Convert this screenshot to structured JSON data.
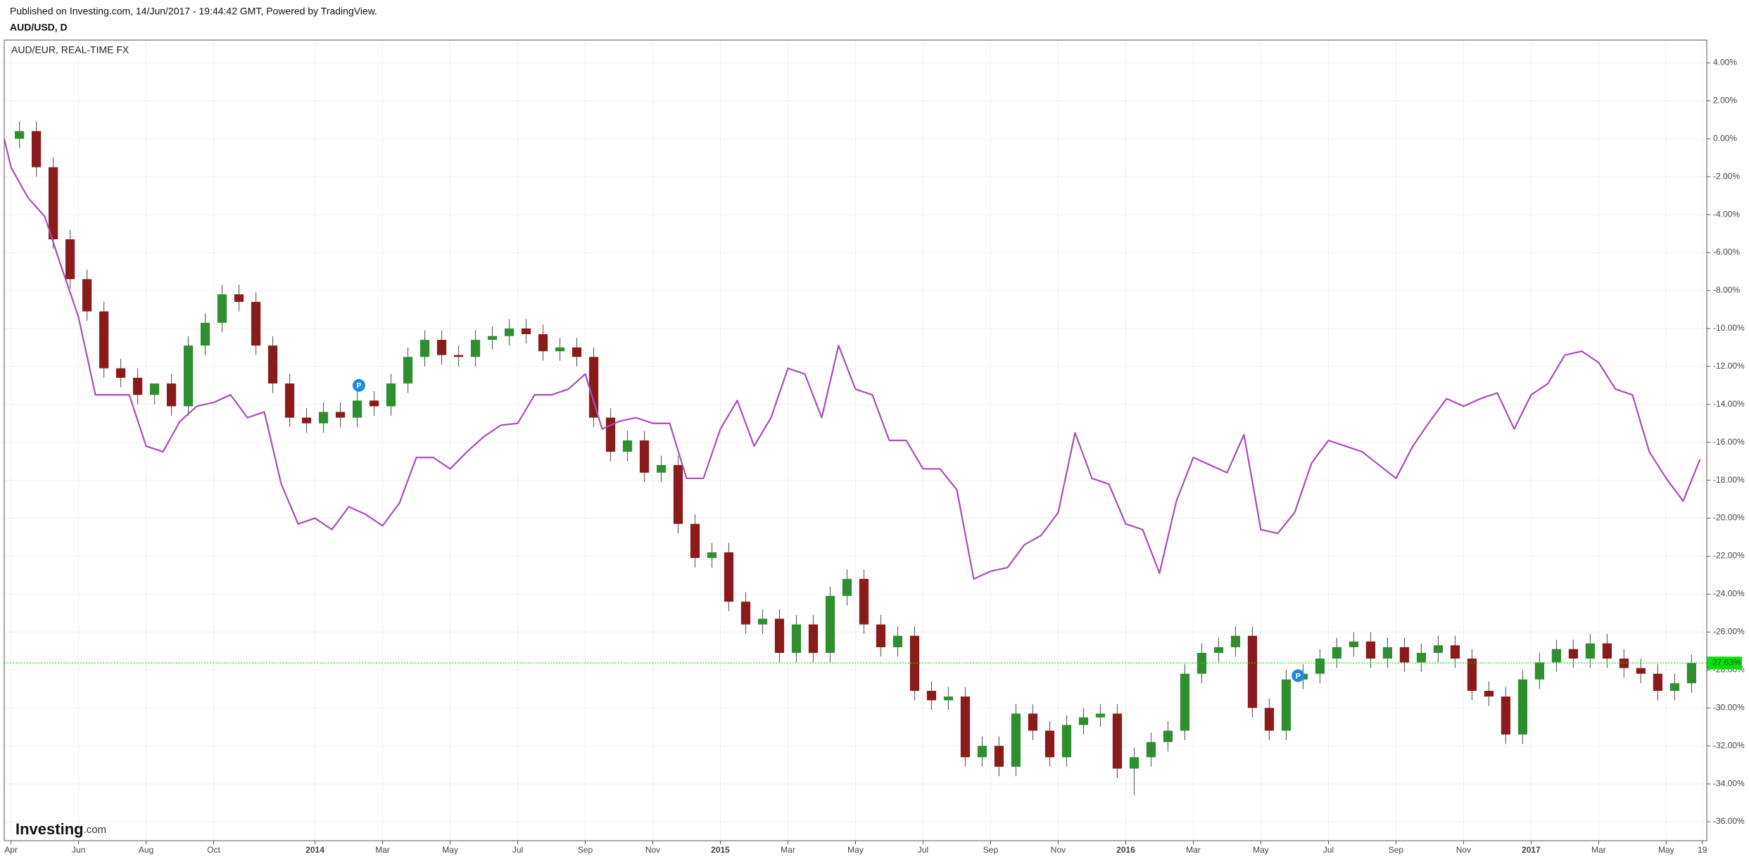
{
  "header": {
    "published": "Published on Investing.com, 14/Jun/2017 - 19:44:42 GMT, Powered by TradingView."
  },
  "watermark": {
    "brand": "Investing",
    "suffix": ".com"
  },
  "chart_data": {
    "type": "candlestick",
    "series": [
      {
        "name": "AUD/USD, D",
        "type": "candlestick",
        "up_color": "#2f8f2f",
        "down_color": "#8b1a1a",
        "wick_color": "#666666",
        "x": [
          0.25,
          0.75,
          1.25,
          1.75,
          2.25,
          2.75,
          3.25,
          3.75,
          4.25,
          4.75,
          5.25,
          5.75,
          6.25,
          6.75,
          7.25,
          7.75,
          8.25,
          8.75,
          9.25,
          9.75,
          10.25,
          10.75,
          11.25,
          11.75,
          12.25,
          12.75,
          13.25,
          13.75,
          14.25,
          14.75,
          15.25,
          15.75,
          16.25,
          16.75,
          17.25,
          17.75,
          18.25,
          18.75,
          19.25,
          19.75,
          20.25,
          20.75,
          21.25,
          21.75,
          22.25,
          22.75,
          23.25,
          23.75,
          24.25,
          24.75,
          25.25,
          25.75,
          26.25,
          26.75,
          27.25,
          27.75,
          28.25,
          28.75,
          29.25,
          29.75,
          30.25,
          30.75,
          31.25,
          31.75,
          32.25,
          32.75,
          33.25,
          33.75,
          34.25,
          34.75,
          35.25,
          35.75,
          36.25,
          36.75,
          37.25,
          37.75,
          38.25,
          38.75,
          39.25,
          39.75,
          40.25,
          40.75,
          41.25,
          41.75,
          42.25,
          42.75,
          43.25,
          43.75,
          44.25,
          44.75,
          45.25,
          45.75,
          46.25,
          46.75,
          47.25,
          47.75,
          48.25,
          48.75,
          49.25,
          49.75
        ],
        "open": [
          0,
          0.4,
          -1.5,
          -5.3,
          -7.4,
          -9.1,
          -12.1,
          -12.6,
          -13.5,
          -12.9,
          -14.1,
          -10.9,
          -9.7,
          -8.2,
          -8.6,
          -10.9,
          -12.9,
          -14.7,
          -15,
          -14.4,
          -14.7,
          -13.8,
          -14.1,
          -12.9,
          -11.5,
          -10.6,
          -11.4,
          -11.5,
          -10.6,
          -10.4,
          -10,
          -10.3,
          -11.2,
          -11.0,
          -11.5,
          -14.7,
          -16.5,
          -15.9,
          -17.6,
          -17.2,
          -20.3,
          -22.1,
          -21.8,
          -24.4,
          -25.6,
          -25.3,
          -27.1,
          -25.6,
          -27.1,
          -24.1,
          -23.2,
          -25.6,
          -26.8,
          -26.2,
          -29.1,
          -29.6,
          -29.4,
          -32.6,
          -32,
          -33.1,
          -30.3,
          -31.2,
          -32.6,
          -30.9,
          -30.5,
          -30.3,
          -33.2,
          -32.6,
          -31.8,
          -31.2,
          -28.2,
          -27.1,
          -26.8,
          -26.2,
          -30,
          -31.2,
          -28.5,
          -28.2,
          -27.4,
          -26.8,
          -26.5,
          -27.4,
          -26.8,
          -27.6,
          -27.1,
          -26.7,
          -27.4,
          -29.1,
          -29.4,
          -31.4,
          -28.5,
          -27.6,
          -26.9,
          -27.4,
          -26.6,
          -27.4,
          -27.9,
          -28.2,
          -29.1,
          -28.7
        ],
        "high": [
          0.9,
          0.9,
          -1.0,
          -4.8,
          -6.9,
          -8.6,
          -11.6,
          -12.1,
          -13.0,
          -12.4,
          -10.4,
          -9.2,
          -7.7,
          -7.7,
          -8.1,
          -10.4,
          -12.4,
          -14.2,
          -13.9,
          -13.9,
          -13.3,
          -13.3,
          -12.4,
          -11.0,
          -10.1,
          -10.1,
          -10.9,
          -10.1,
          -9.9,
          -9.5,
          -9.5,
          -9.8,
          -10.5,
          -10.5,
          -11.0,
          -14.2,
          -15.4,
          -15.4,
          -16.7,
          -16.7,
          -19.8,
          -21.3,
          -21.3,
          -23.9,
          -24.8,
          -24.8,
          -25.1,
          -25.1,
          -23.6,
          -22.7,
          -22.7,
          -25.1,
          -25.7,
          -25.7,
          -28.6,
          -28.9,
          -28.9,
          -31.5,
          -31.5,
          -29.8,
          -29.8,
          -30.7,
          -30.4,
          -30.0,
          -29.8,
          -29.8,
          -32.1,
          -31.3,
          -30.7,
          -27.7,
          -26.6,
          -26.3,
          -25.7,
          -25.7,
          -29.5,
          -28.0,
          -27.7,
          -26.9,
          -26.3,
          -26.0,
          -26.0,
          -26.3,
          -26.3,
          -26.6,
          -26.2,
          -26.2,
          -26.9,
          -28.6,
          -28.9,
          -28.0,
          -27.1,
          -26.4,
          -26.4,
          -26.1,
          -26.1,
          -26.9,
          -27.4,
          -27.7,
          -28.2,
          -27.2
        ],
        "low": [
          -0.5,
          -2.0,
          -5.8,
          -7.9,
          -9.6,
          -12.6,
          -13.1,
          -14.0,
          -14.0,
          -14.6,
          -14.6,
          -11.4,
          -10.2,
          -9.1,
          -11.4,
          -13.4,
          -15.2,
          -15.5,
          -15.5,
          -15.2,
          -15.2,
          -14.6,
          -14.6,
          -13.4,
          -12.0,
          -11.9,
          -12.0,
          -12.0,
          -11.1,
          -10.9,
          -10.8,
          -11.7,
          -11.7,
          -12.0,
          -15.2,
          -17.0,
          -17.0,
          -18.1,
          -18.1,
          -20.8,
          -22.6,
          -22.6,
          -24.9,
          -26.1,
          -26.1,
          -27.6,
          -27.6,
          -27.6,
          -27.6,
          -24.6,
          -26.1,
          -27.3,
          -27.3,
          -29.6,
          -30.1,
          -30.1,
          -33.1,
          -33.1,
          -33.6,
          -33.6,
          -31.7,
          -33.1,
          -33.1,
          -31.4,
          -31.0,
          -33.7,
          -34.6,
          -33.1,
          -32.3,
          -31.7,
          -28.7,
          -27.6,
          -27.3,
          -30.5,
          -31.7,
          -31.7,
          -29.0,
          -28.7,
          -27.9,
          -27.3,
          -27.9,
          -27.9,
          -28.1,
          -28.1,
          -27.6,
          -27.9,
          -29.6,
          -29.9,
          -31.9,
          -31.9,
          -29.0,
          -28.1,
          -27.9,
          -27.9,
          -27.9,
          -28.4,
          -28.7,
          -29.6,
          -29.6,
          -29.2
        ],
        "close": [
          0.4,
          -1.5,
          -5.3,
          -7.4,
          -9.1,
          -12.1,
          -12.6,
          -13.5,
          -12.9,
          -14.1,
          -10.9,
          -9.7,
          -8.2,
          -8.6,
          -10.9,
          -12.9,
          -14.7,
          -15,
          -14.4,
          -14.7,
          -13.8,
          -14.1,
          -12.9,
          -11.5,
          -10.6,
          -11.4,
          -11.5,
          -10.6,
          -10.4,
          -10,
          -10.3,
          -11.2,
          -11.0,
          -11.5,
          -14.7,
          -16.5,
          -15.9,
          -17.6,
          -17.2,
          -20.3,
          -22.1,
          -21.8,
          -24.4,
          -25.6,
          -25.3,
          -27.1,
          -25.6,
          -27.1,
          -24.1,
          -23.2,
          -25.6,
          -26.8,
          -26.2,
          -29.1,
          -29.6,
          -29.4,
          -32.6,
          -32,
          -33.1,
          -30.3,
          -31.2,
          -32.6,
          -30.9,
          -30.5,
          -30.3,
          -33.2,
          -32.6,
          -31.8,
          -31.2,
          -28.2,
          -27.1,
          -26.8,
          -26.2,
          -30,
          -31.2,
          -28.5,
          -28.2,
          -27.4,
          -26.8,
          -26.5,
          -27.4,
          -26.8,
          -27.6,
          -27.1,
          -26.7,
          -27.4,
          -29.1,
          -29.4,
          -31.4,
          -28.5,
          -27.6,
          -26.9,
          -27.4,
          -26.6,
          -27.4,
          -27.9,
          -28.2,
          -29.1,
          -28.7,
          -27.63
        ]
      },
      {
        "name": "AUD/EUR, REAL-TIME FX",
        "type": "line",
        "color": "#a64fb5",
        "x": [
          -0.2,
          0,
          0.5,
          1,
          1.5,
          2,
          2.5,
          3,
          3.5,
          4,
          4.5,
          5,
          5.5,
          6,
          6.5,
          7,
          7.5,
          8,
          8.5,
          9,
          9.5,
          10,
          10.5,
          11,
          11.5,
          12,
          12.5,
          13,
          13.5,
          14,
          14.5,
          15,
          15.5,
          16,
          16.5,
          17,
          17.5,
          18,
          18.5,
          19,
          19.5,
          20,
          20.5,
          21,
          21.5,
          22,
          22.5,
          23,
          23.5,
          24,
          24.5,
          25,
          25.5,
          26,
          26.5,
          27,
          27.5,
          28,
          28.5,
          29,
          29.5,
          30,
          30.5,
          31,
          31.5,
          32,
          32.5,
          33,
          33.5,
          34,
          34.5,
          35,
          35.5,
          36,
          36.5,
          37,
          37.5,
          38,
          38.5,
          39,
          39.5,
          40,
          40.5,
          41,
          41.5,
          42,
          42.5,
          43,
          43.5,
          44,
          44.5,
          45,
          45.5,
          46,
          46.5,
          47,
          47.5,
          48,
          48.5,
          49,
          49.5,
          50
        ],
        "values": [
          0,
          -1.5,
          -3.1,
          -4.1,
          -6.8,
          -9.4,
          -13.5,
          -13.5,
          -13.5,
          -16.2,
          -16.5,
          -14.9,
          -14.1,
          -13.9,
          -13.5,
          -14.7,
          -14.4,
          -18.2,
          -20.3,
          -20,
          -20.6,
          -19.4,
          -19.8,
          -20.4,
          -19.2,
          -16.8,
          -16.8,
          -17.4,
          -16.5,
          -15.7,
          -15.1,
          -15,
          -13.5,
          -13.5,
          -13.2,
          -12.4,
          -15.3,
          -14.9,
          -14.7,
          -15,
          -15,
          -17.9,
          -17.9,
          -15.3,
          -13.8,
          -16.2,
          -14.7,
          -12.1,
          -12.4,
          -14.7,
          -10.9,
          -13.2,
          -13.5,
          -15.9,
          -15.9,
          -17.4,
          -17.4,
          -18.5,
          -23.2,
          -22.8,
          -22.6,
          -21.4,
          -20.9,
          -19.7,
          -15.5,
          -17.9,
          -18.2,
          -20.3,
          -20.6,
          -22.9,
          -19.1,
          -16.8,
          -17.2,
          -17.6,
          -15.6,
          -20.6,
          -20.8,
          -19.7,
          -17.1,
          -15.9,
          -16.2,
          -16.5,
          -17.2,
          -17.9,
          -16.2,
          -14.9,
          -13.7,
          -14.1,
          -13.7,
          -13.4,
          -15.3,
          -13.5,
          -12.9,
          -11.4,
          -11.2,
          -11.8,
          -13.2,
          -13.5,
          -16.5,
          -17.9,
          -19.1,
          -16.9
        ]
      }
    ],
    "xlim": [
      -0.2,
      50.2
    ],
    "xticks": [
      {
        "value": 0,
        "label": "Apr"
      },
      {
        "value": 2,
        "label": "Jun"
      },
      {
        "value": 4,
        "label": "Aug"
      },
      {
        "value": 6,
        "label": "Oct"
      },
      {
        "value": 9,
        "label": "2014"
      },
      {
        "value": 11,
        "label": "Mar"
      },
      {
        "value": 13,
        "label": "May"
      },
      {
        "value": 15,
        "label": "Jul"
      },
      {
        "value": 17,
        "label": "Sep"
      },
      {
        "value": 19,
        "label": "Nov"
      },
      {
        "value": 21,
        "label": "2015"
      },
      {
        "value": 23,
        "label": "Mar"
      },
      {
        "value": 25,
        "label": "May"
      },
      {
        "value": 27,
        "label": "Jul"
      },
      {
        "value": 29,
        "label": "Sep"
      },
      {
        "value": 31,
        "label": "Nov"
      },
      {
        "value": 33,
        "label": "2016"
      },
      {
        "value": 35,
        "label": "Mar"
      },
      {
        "value": 37,
        "label": "May"
      },
      {
        "value": 39,
        "label": "Jul"
      },
      {
        "value": 41,
        "label": "Sep"
      },
      {
        "value": 43,
        "label": "Nov"
      },
      {
        "value": 45,
        "label": "2017"
      },
      {
        "value": 47,
        "label": "Mar"
      },
      {
        "value": 49,
        "label": "May"
      },
      {
        "value": 50.07,
        "label": "19"
      }
    ],
    "ylim": [
      -37,
      5.2
    ],
    "yticks": [
      {
        "value": 4,
        "label": "4.00%"
      },
      {
        "value": 2,
        "label": "2.00%"
      },
      {
        "value": 0,
        "label": "0.00%"
      },
      {
        "value": -2,
        "label": "-2.00%"
      },
      {
        "value": -4,
        "label": "-4.00%"
      },
      {
        "value": -6,
        "label": "-6.00%"
      },
      {
        "value": -8,
        "label": "-8.00%"
      },
      {
        "value": -10,
        "label": "-10.00%"
      },
      {
        "value": -12,
        "label": "-12.00%"
      },
      {
        "value": -14,
        "label": "-14.00%"
      },
      {
        "value": -16,
        "label": "-16.00%"
      },
      {
        "value": -18,
        "label": "-18.00%"
      },
      {
        "value": -20,
        "label": "-20.00%"
      },
      {
        "value": -22,
        "label": "-22.00%"
      },
      {
        "value": -24,
        "label": "-24.00%"
      },
      {
        "value": -26,
        "label": "-26.00%"
      },
      {
        "value": -28,
        "label": "-28.00%"
      },
      {
        "value": -30,
        "label": "-30.00%"
      },
      {
        "value": -32,
        "label": "-32.00%"
      },
      {
        "value": -34,
        "label": "-34.00%"
      },
      {
        "value": -36,
        "label": "-36.00%"
      }
    ],
    "grid": true,
    "y_axis_side": "right",
    "last_value": {
      "value": -27.63,
      "label": "-27.63%",
      "color": "#00e600"
    },
    "markers": [
      {
        "label": "P",
        "x": 10.3,
        "y": -13.0,
        "color": "#1e88e5"
      },
      {
        "label": "P",
        "x": 38.1,
        "y": -28.3,
        "color": "#1e88e5"
      }
    ]
  }
}
